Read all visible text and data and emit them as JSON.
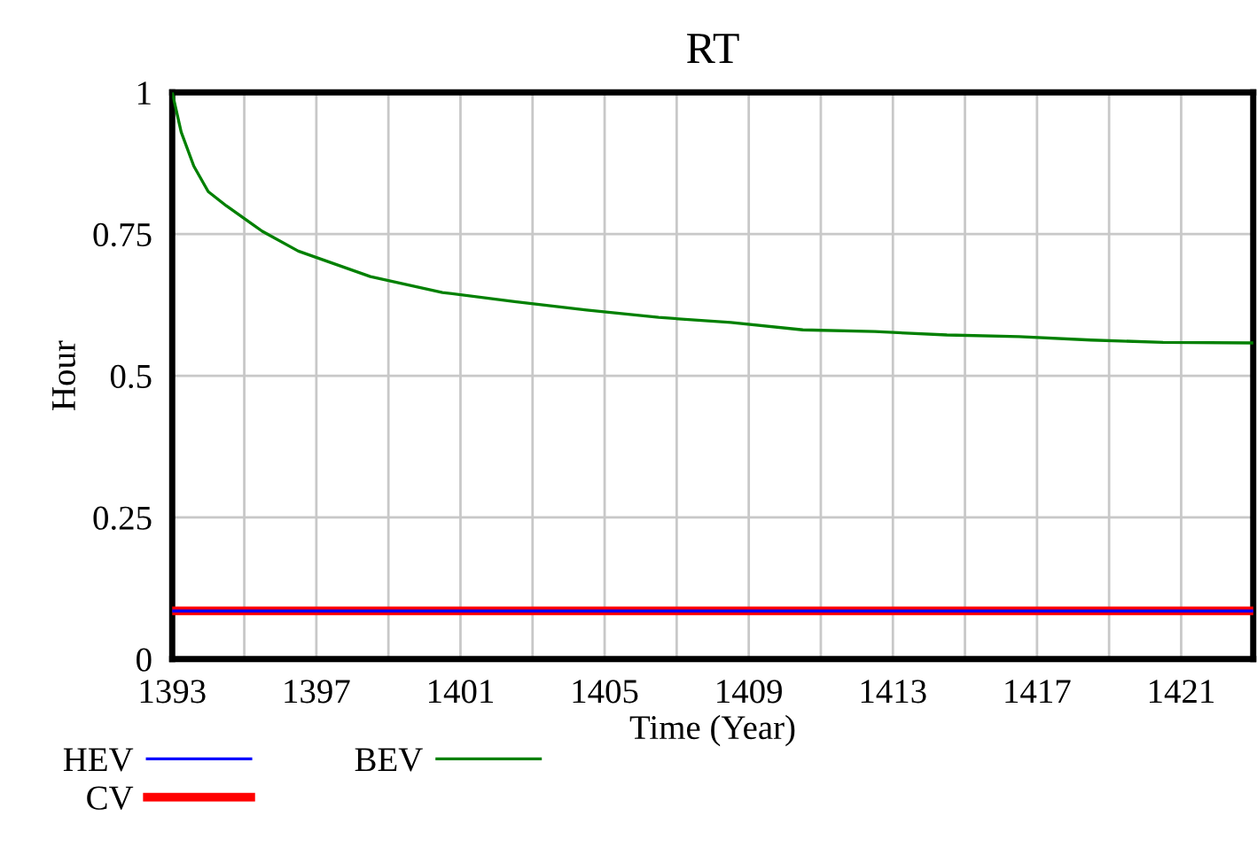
{
  "chart_data": {
    "type": "line",
    "title": "RT",
    "xlabel": "Time (Year)",
    "ylabel": "Hour",
    "xlim": [
      1393,
      1423
    ],
    "xticks": [
      1393,
      {
        "value": 1395,
        "label": null
      },
      1397,
      {
        "value": 1399,
        "label": null
      },
      1401,
      {
        "value": 1403,
        "label": null
      },
      1405,
      {
        "value": 1407,
        "label": null
      },
      1409,
      {
        "value": 1411,
        "label": null
      },
      1413,
      {
        "value": 1415,
        "label": null
      },
      1417,
      {
        "value": 1419,
        "label": null
      },
      1421,
      {
        "value": 1423,
        "label": null
      }
    ],
    "ylim": [
      0,
      1
    ],
    "yticks": [
      0,
      0.25,
      0.5,
      0.75,
      1
    ],
    "grid": true,
    "legend": "bottom",
    "series": [
      {
        "name": "HEV",
        "color": "#0000ff",
        "x": [
          1393,
          1423
        ],
        "values": [
          0.085,
          0.085
        ]
      },
      {
        "name": "CV",
        "color": "#ff0000",
        "x": [
          1393,
          1423
        ],
        "values": [
          0.085,
          0.085
        ]
      },
      {
        "name": "BEV",
        "color": "#008000",
        "x": [
          1393,
          1393.25,
          1393.6,
          1394,
          1394.5,
          1395.5,
          1396.5,
          1398.5,
          1400.5,
          1402.5,
          1404.5,
          1406.5,
          1408.5,
          1410.5,
          1412.5,
          1414.5,
          1416.5,
          1418.5,
          1420.5,
          1423
        ],
        "values": [
          1.0,
          0.93,
          0.87,
          0.825,
          0.8,
          0.755,
          0.72,
          0.675,
          0.647,
          0.631,
          0.616,
          0.603,
          0.594,
          0.581,
          0.578,
          0.572,
          0.569,
          0.563,
          0.559,
          0.558
        ]
      }
    ]
  }
}
